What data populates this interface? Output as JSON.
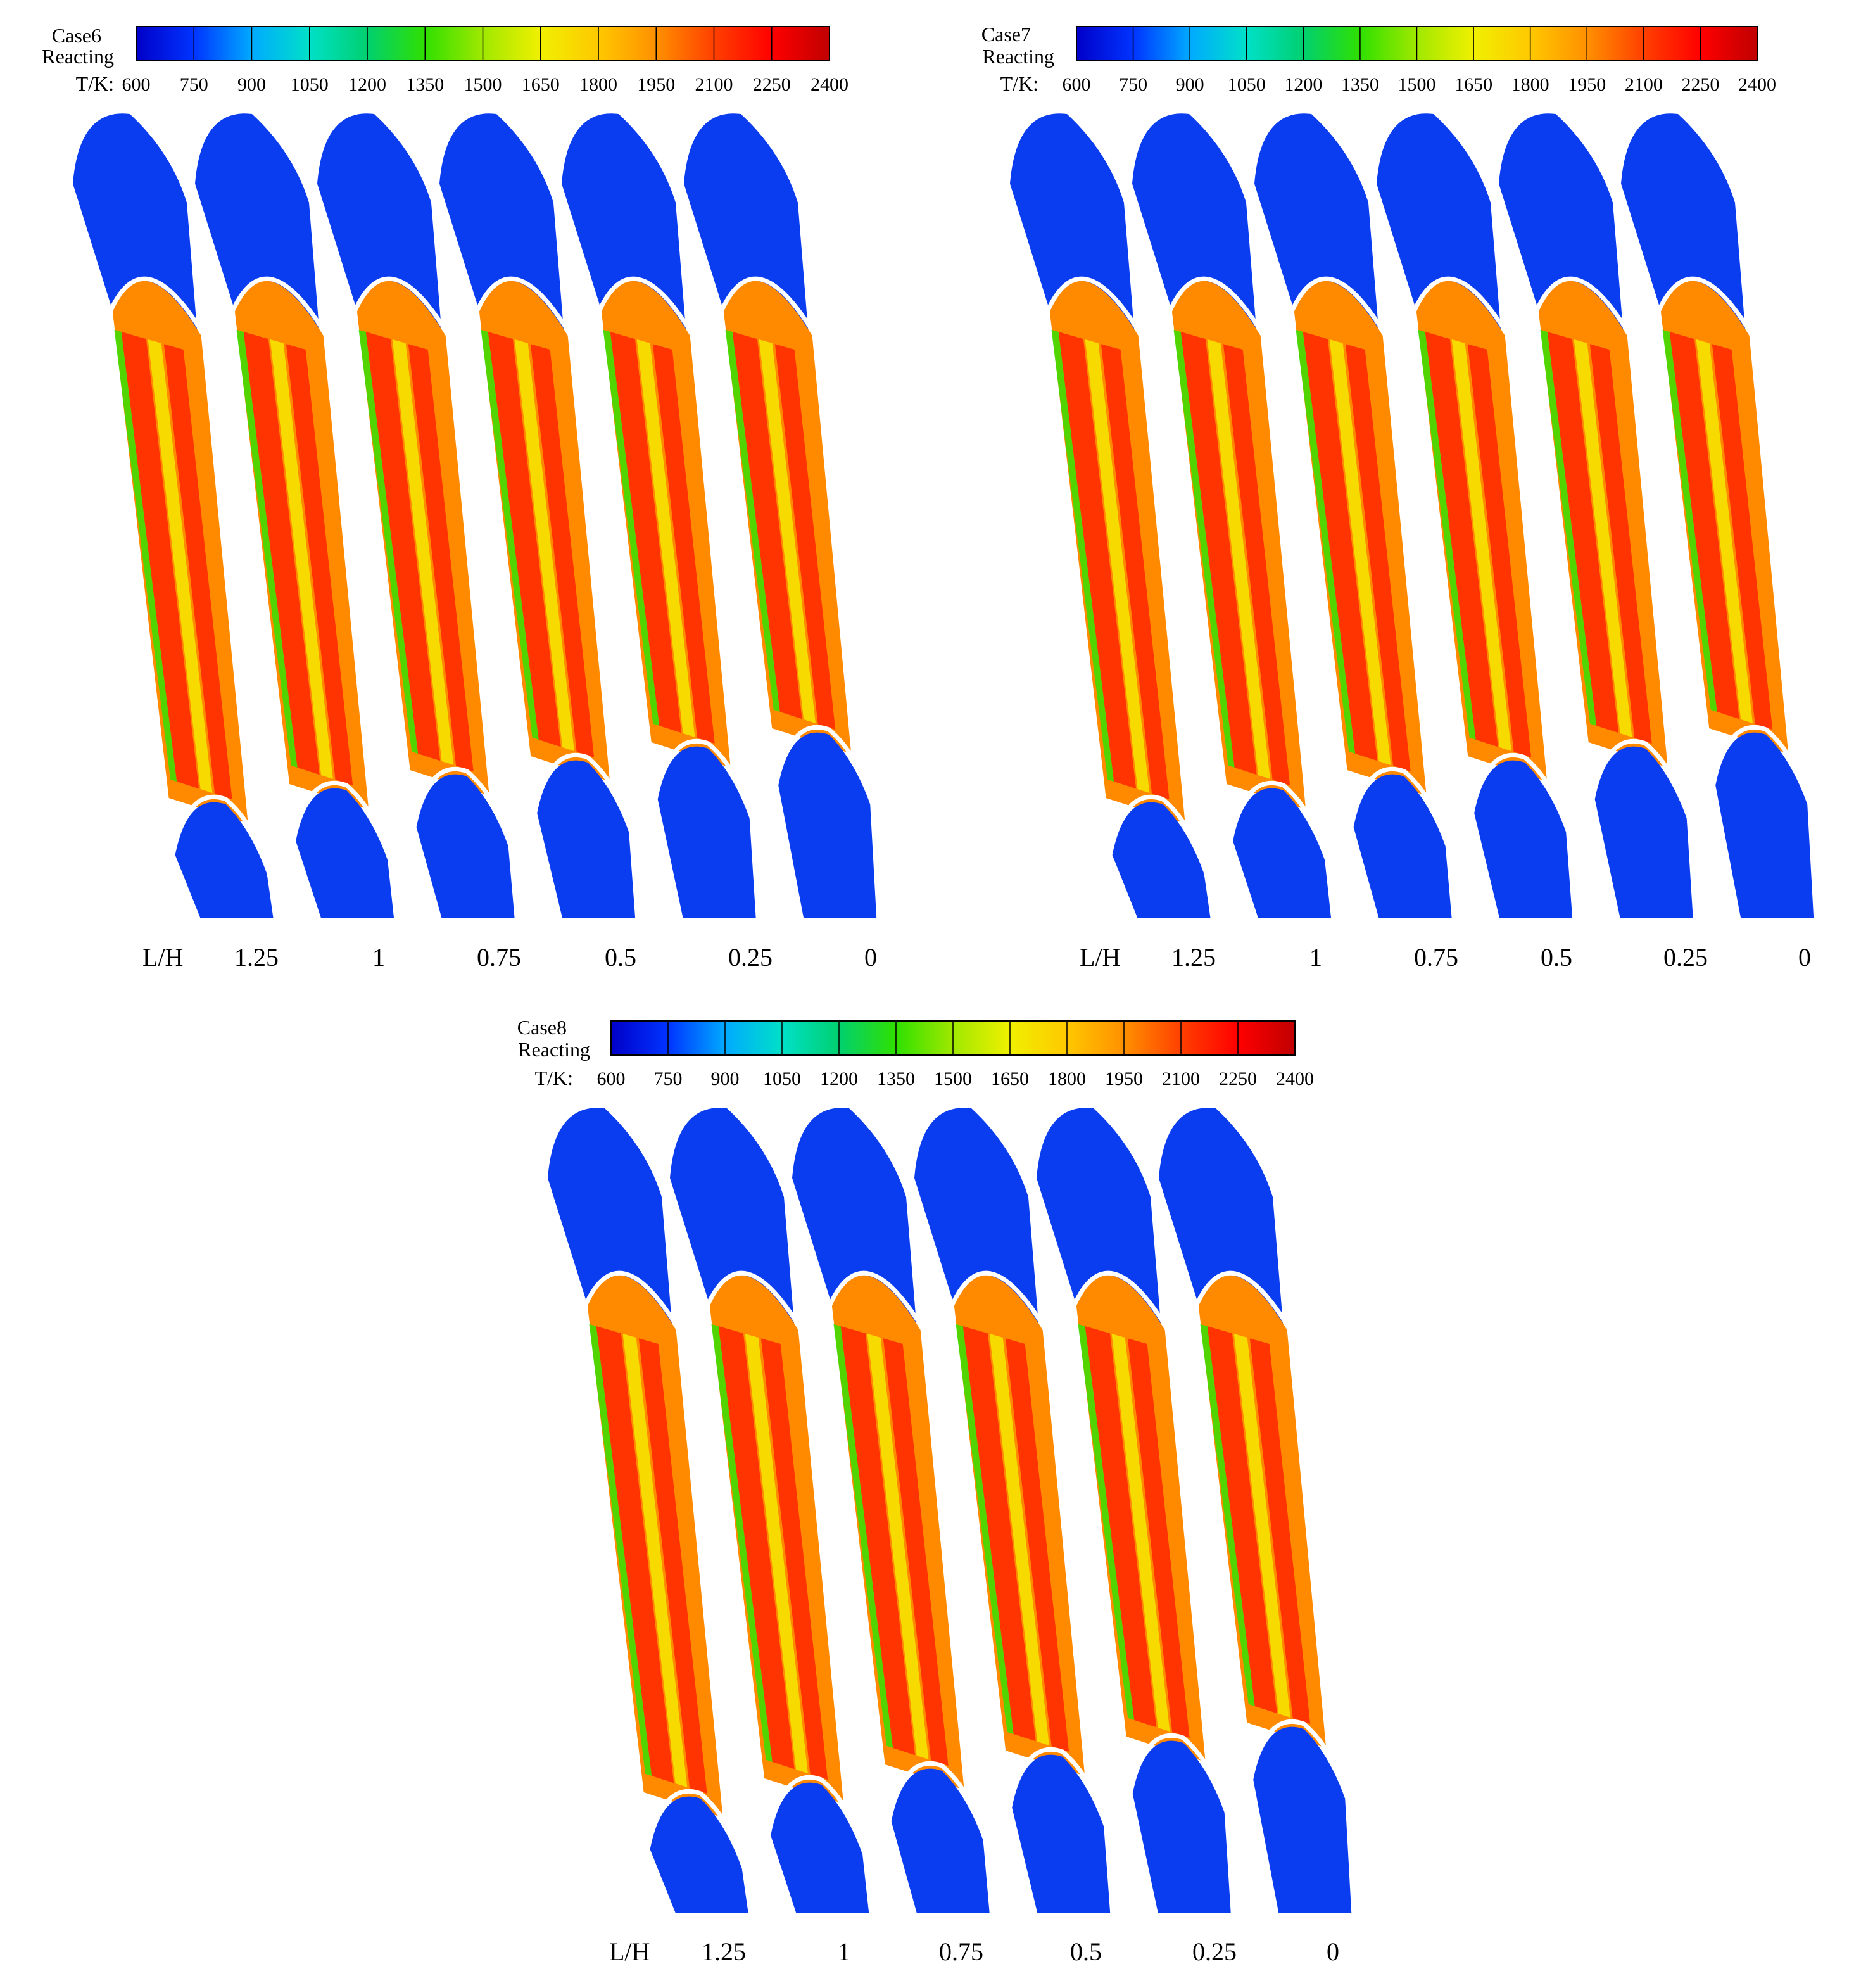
{
  "colormap": [
    "#0000c8",
    "#0033ff",
    "#00aaff",
    "#00e0c8",
    "#00d070",
    "#30e000",
    "#a0e800",
    "#f0f000",
    "#ffc800",
    "#ff9000",
    "#ff4000",
    "#ff0000",
    "#c00000"
  ],
  "flow_colors": {
    "cold": "#0a3cf0",
    "hot": "#ff2400",
    "orange": "#ff8a00",
    "yellow": "#f6e800",
    "green": "#33e000",
    "cyan": "#00c8e0"
  },
  "panels": [
    {
      "case_label": "Case6",
      "state_label": "Reacting",
      "axis_label": "T/K:",
      "ticks": [
        "600",
        "750",
        "900",
        "1050",
        "1200",
        "1350",
        "1500",
        "1650",
        "1800",
        "1950",
        "2100",
        "2250",
        "2400"
      ],
      "lh_label": "L/H",
      "lh_values": [
        "1.25",
        "1",
        "0.75",
        "0.5",
        "0.25",
        "0"
      ]
    },
    {
      "case_label": "Case7",
      "state_label": "Reacting",
      "axis_label": "T/K:",
      "ticks": [
        "600",
        "750",
        "900",
        "1050",
        "1200",
        "1350",
        "1500",
        "1650",
        "1800",
        "1950",
        "2100",
        "2250",
        "2400"
      ],
      "lh_label": "L/H",
      "lh_values": [
        "1.25",
        "1",
        "0.75",
        "0.5",
        "0.25",
        "0"
      ]
    },
    {
      "case_label": "Case8",
      "state_label": "Reacting",
      "axis_label": "T/K:",
      "ticks": [
        "600",
        "750",
        "900",
        "1050",
        "1200",
        "1350",
        "1500",
        "1650",
        "1800",
        "1950",
        "2100",
        "2250",
        "2400"
      ],
      "lh_label": "L/H",
      "lh_values": [
        "1.25",
        "1",
        "0.75",
        "0.5",
        "0.25",
        "0"
      ]
    }
  ]
}
